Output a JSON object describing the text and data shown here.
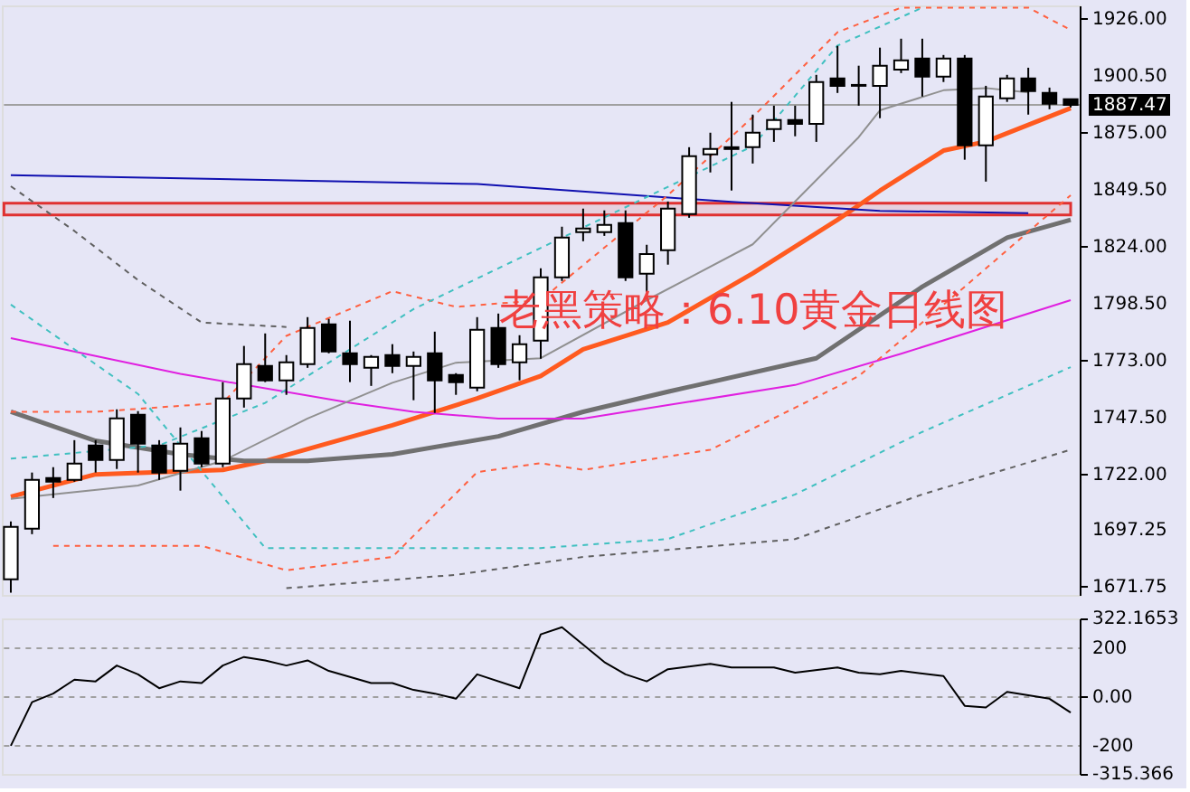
{
  "chart_data": [
    {
      "type": "candlestick",
      "categories": [
        null,
        null,
        null,
        null,
        null,
        null,
        null,
        null,
        null,
        null,
        null,
        null,
        null,
        null,
        null,
        null,
        null,
        null,
        null,
        null,
        null,
        null,
        null,
        null,
        null,
        null,
        null,
        null,
        null,
        null,
        null,
        null,
        null,
        null,
        null,
        null,
        null,
        null,
        null,
        null,
        null,
        null,
        null,
        null,
        null,
        null,
        null,
        null,
        null,
        null,
        null
      ],
      "ohlc": [
        [
          1675.0,
          1700.9,
          1669.0,
          1698.5
        ],
        [
          1697.7,
          1722.8,
          1695.2,
          1719.5
        ],
        [
          1720.3,
          1725.2,
          1711.4,
          1718.7
        ],
        [
          1719.5,
          1737.3,
          1718.7,
          1726.8
        ],
        [
          1734.9,
          1737.3,
          1722.8,
          1728.4
        ],
        [
          1728.4,
          1751.1,
          1724.4,
          1747.1
        ],
        [
          1748.7,
          1750.3,
          1722.8,
          1735.7
        ],
        [
          1734.9,
          1737.3,
          1719.5,
          1722.8
        ],
        [
          1723.6,
          1743.0,
          1714.7,
          1735.7
        ],
        [
          1738.2,
          1741.4,
          1725.2,
          1726.8
        ],
        [
          1726.8,
          1763.3,
          1725.2,
          1756.0
        ],
        [
          1756.0,
          1779.5,
          1751.9,
          1771.4
        ],
        [
          1770.5,
          1785.1,
          1763.3,
          1764.1
        ],
        [
          1764.1,
          1775.4,
          1757.6,
          1772.2
        ],
        [
          1771.4,
          1792.4,
          1769.7,
          1787.5
        ],
        [
          1789.2,
          1791.6,
          1776.2,
          1777.0
        ],
        [
          1776.2,
          1790.8,
          1763.3,
          1771.4
        ],
        [
          1769.7,
          1775.4,
          1761.6,
          1774.6
        ],
        [
          1775.4,
          1780.3,
          1767.3,
          1770.5
        ],
        [
          1770.5,
          1777.0,
          1755.2,
          1774.6
        ],
        [
          1776.2,
          1785.9,
          1749.5,
          1764.1
        ],
        [
          1766.5,
          1767.3,
          1757.6,
          1763.3
        ],
        [
          1760.8,
          1792.4,
          1759.2,
          1786.7
        ],
        [
          1787.5,
          1794.0,
          1769.7,
          1771.4
        ],
        [
          1772.2,
          1784.3,
          1764.1,
          1780.3
        ],
        [
          1781.9,
          1814.3,
          1773.8,
          1810.2
        ],
        [
          1810.2,
          1832.9,
          1808.6,
          1828.0
        ],
        [
          1830.5,
          1841.0,
          1826.4,
          1832.1
        ],
        [
          1830.5,
          1840.2,
          1828.8,
          1833.7
        ],
        [
          1834.5,
          1840.2,
          1808.6,
          1810.2
        ],
        [
          1811.8,
          1824.8,
          1803.7,
          1820.7
        ],
        [
          1822.4,
          1844.2,
          1815.9,
          1841.0
        ],
        [
          1838.6,
          1868.5,
          1836.9,
          1864.5
        ],
        [
          1865.3,
          1875.0,
          1857.2,
          1867.7
        ],
        [
          1867.7,
          1888.8,
          1849.1,
          1868.5
        ],
        [
          1868.5,
          1883.1,
          1861.2,
          1875.0
        ],
        [
          1876.6,
          1887.1,
          1870.9,
          1880.7
        ],
        [
          1880.7,
          1887.1,
          1873.4,
          1879.0
        ],
        [
          1879.0,
          1900.9,
          1870.9,
          1897.7
        ],
        [
          1899.3,
          1913.9,
          1892.8,
          1896.0
        ],
        [
          1896.0,
          1905.0,
          1887.1,
          1896.4
        ],
        [
          1896.0,
          1913.1,
          1881.5,
          1905.0
        ],
        [
          1903.3,
          1917.1,
          1901.7,
          1907.4
        ],
        [
          1908.2,
          1917.1,
          1891.2,
          1900.1
        ],
        [
          1900.1,
          1909.8,
          1897.7,
          1908.2
        ],
        [
          1908.2,
          1909.8,
          1862.9,
          1869.3
        ],
        [
          1869.3,
          1896.0,
          1853.1,
          1891.2
        ],
        [
          1890.4,
          1900.9,
          1888.8,
          1899.3
        ],
        [
          1899.3,
          1904.1,
          1883.1,
          1893.6
        ],
        [
          1892.8,
          1895.2,
          1885.5,
          1888.0
        ],
        [
          1890.0,
          1890.0,
          1886.3,
          1887.47
        ]
      ],
      "series": [
        {
          "type": "line",
          "color": "#ff5a1f",
          "values": [
            1712,
            null,
            null,
            null,
            1722,
            null,
            null,
            null,
            null,
            null,
            1724,
            null,
            1728,
            null,
            null,
            null,
            null,
            null,
            1744,
            null,
            null,
            null,
            1756,
            null,
            null,
            1766,
            null,
            1778,
            null,
            null,
            null,
            1790,
            null,
            null,
            null,
            1812,
            null,
            null,
            null,
            1836,
            null,
            1849,
            null,
            null,
            1867,
            null,
            1871,
            null,
            null,
            null,
            1886
          ]
        },
        {
          "type": "line",
          "color": "#707070",
          "values": [
            1750,
            null,
            null,
            null,
            1737,
            null,
            null,
            null,
            1731,
            null,
            null,
            1728,
            null,
            null,
            1728,
            null,
            null,
            null,
            1731,
            null,
            null,
            null,
            null,
            1739,
            null,
            null,
            null,
            1750,
            null,
            null,
            null,
            1759,
            null,
            null,
            null,
            null,
            null,
            null,
            1774,
            null,
            null,
            null,
            null,
            1806,
            null,
            null,
            null,
            1828,
            null,
            null,
            1836
          ]
        },
        {
          "type": "line",
          "color": "#e020e0",
          "values": [
            1783,
            null,
            null,
            null,
            1775,
            null,
            null,
            null,
            1767,
            null,
            null,
            null,
            null,
            null,
            null,
            null,
            1754,
            null,
            null,
            1750,
            null,
            null,
            null,
            1747,
            null,
            null,
            null,
            1747,
            null,
            null,
            null,
            1753,
            null,
            null,
            null,
            null,
            null,
            1762,
            null,
            null,
            null,
            null,
            1776,
            null,
            null,
            null,
            null,
            null,
            null,
            null,
            1800
          ]
        },
        {
          "type": "line",
          "color": "#1010b0",
          "values": [
            1856,
            null,
            null,
            null,
            null,
            null,
            null,
            null,
            null,
            null,
            null,
            null,
            null,
            null,
            null,
            null,
            null,
            null,
            null,
            null,
            null,
            null,
            1852,
            null,
            null,
            null,
            null,
            null,
            null,
            null,
            null,
            null,
            null,
            null,
            1844,
            null,
            null,
            null,
            null,
            null,
            null,
            1840,
            null,
            null,
            null,
            null,
            null,
            null,
            1839,
            null,
            null
          ]
        },
        {
          "type": "line",
          "color": "#909090",
          "values": [
            1711,
            null,
            1713,
            null,
            null,
            null,
            1717,
            null,
            null,
            null,
            1728,
            null,
            null,
            null,
            1747,
            null,
            null,
            null,
            1763,
            null,
            null,
            1772,
            null,
            null,
            null,
            1774,
            null,
            null,
            null,
            null,
            1800,
            null,
            null,
            null,
            null,
            1825,
            null,
            null,
            null,
            null,
            1873,
            1885,
            null,
            null,
            1894,
            null,
            1895,
            null,
            1893,
            null,
            null
          ]
        },
        {
          "type": "line",
          "color": "#ff6040",
          "line_style": "dashed",
          "values": [
            1750,
            null,
            null,
            null,
            1750,
            null,
            null,
            null,
            null,
            null,
            1754,
            null,
            null,
            1784,
            null,
            null,
            null,
            null,
            1804,
            null,
            null,
            1797,
            null,
            null,
            null,
            1800,
            null,
            null,
            null,
            null,
            null,
            1847,
            null,
            null,
            null,
            1882,
            null,
            null,
            null,
            1920,
            null,
            null,
            1931,
            null,
            null,
            null,
            null,
            null,
            1931,
            null,
            1921
          ]
        },
        {
          "type": "line",
          "color": "#ff6040",
          "line_style": "dashed",
          "values": [
            null,
            null,
            1690,
            null,
            null,
            null,
            null,
            null,
            null,
            1690,
            null,
            null,
            null,
            1679,
            null,
            null,
            null,
            null,
            1685,
            null,
            null,
            null,
            1723,
            null,
            null,
            1727,
            null,
            1724,
            null,
            null,
            null,
            null,
            null,
            1733,
            null,
            null,
            null,
            null,
            null,
            null,
            1766,
            null,
            null,
            null,
            null,
            1806,
            null,
            null,
            null,
            null,
            1847
          ]
        },
        {
          "type": "line",
          "color": "#40c0c0",
          "line_style": "dashed",
          "values": [
            1729,
            null,
            null,
            null,
            null,
            null,
            null,
            1735,
            null,
            null,
            null,
            null,
            1754,
            null,
            null,
            null,
            null,
            null,
            null,
            1796,
            null,
            null,
            null,
            null,
            null,
            null,
            null,
            null,
            null,
            null,
            null,
            null,
            null,
            null,
            null,
            1869,
            null,
            null,
            null,
            1914,
            null,
            null,
            null,
            1931,
            null,
            null,
            null,
            null,
            null,
            null,
            null
          ]
        },
        {
          "type": "line",
          "color": "#40c0c0",
          "line_style": "dashed",
          "values": [
            1798,
            null,
            null,
            null,
            null,
            null,
            1758,
            null,
            null,
            null,
            null,
            null,
            1689,
            null,
            null,
            null,
            null,
            null,
            null,
            null,
            null,
            null,
            null,
            null,
            null,
            1689,
            null,
            null,
            null,
            null,
            null,
            1693,
            null,
            null,
            null,
            null,
            null,
            1713,
            null,
            null,
            null,
            null,
            null,
            1741,
            null,
            null,
            null,
            null,
            null,
            null,
            1770
          ]
        },
        {
          "type": "line",
          "color": "#606060",
          "line_style": "dashed",
          "values": [
            1851,
            null,
            null,
            1831,
            null,
            null,
            1809,
            null,
            null,
            1790,
            null,
            null,
            null,
            1788,
            null,
            null,
            null,
            null,
            null,
            null,
            null,
            null,
            null,
            null,
            null,
            null,
            null,
            null,
            null,
            null,
            null,
            null,
            null,
            null,
            null,
            null,
            null,
            null,
            null,
            null,
            null,
            null,
            null,
            null,
            null,
            null,
            null,
            null,
            null,
            null,
            null
          ]
        },
        {
          "type": "line",
          "color": "#606060",
          "line_style": "dashed",
          "values": [
            null,
            null,
            null,
            null,
            null,
            null,
            null,
            null,
            null,
            null,
            null,
            null,
            null,
            1671,
            null,
            null,
            null,
            null,
            null,
            null,
            null,
            1677,
            null,
            null,
            null,
            null,
            null,
            1685,
            null,
            null,
            null,
            null,
            null,
            null,
            null,
            null,
            null,
            1693,
            null,
            null,
            null,
            null,
            null,
            1713,
            null,
            null,
            null,
            null,
            null,
            null,
            1733
          ]
        }
      ],
      "ylim": [
        1668,
        1932
      ],
      "yticks": [
        {
          "value": 1926,
          "label": "1926.00"
        },
        {
          "value": 1900.5,
          "label": "1900.50"
        },
        {
          "value": 1875,
          "label": "1875.00"
        },
        {
          "value": 1849.5,
          "label": "1849.50"
        },
        {
          "value": 1824,
          "label": "1824.00"
        },
        {
          "value": 1798.5,
          "label": "1798.50"
        },
        {
          "value": 1773,
          "label": "1773.00"
        },
        {
          "value": 1747.5,
          "label": "1747.50"
        },
        {
          "value": 1722,
          "label": "1722.00"
        },
        {
          "value": 1697.25,
          "label": "1697.25"
        },
        {
          "value": 1671.75,
          "label": "1671.75"
        }
      ],
      "ref_lines": [
        {
          "axis": "y",
          "value": 1887.47,
          "label": "1887.47",
          "color": "#a0a0a0"
        }
      ],
      "bands": [
        {
          "axis": "y",
          "from": 1838.2,
          "to": 1843.4,
          "color": "#e03030"
        }
      ],
      "annotations": [
        "老黑策略：6.10黄金日线图"
      ],
      "tick_labels": "y",
      "grid": false,
      "legend": false,
      "marker": "none"
    },
    {
      "type": "line",
      "categories": [
        null,
        null,
        null,
        null,
        null,
        null,
        null,
        null,
        null,
        null,
        null,
        null,
        null,
        null,
        null,
        null,
        null,
        null,
        null,
        null,
        null,
        null,
        null,
        null,
        null,
        null,
        null,
        null,
        null,
        null,
        null,
        null,
        null,
        null,
        null,
        null,
        null,
        null,
        null,
        null,
        null,
        null,
        null,
        null,
        null,
        null,
        null,
        null,
        null,
        null,
        null
      ],
      "series": [
        {
          "color": "#000000",
          "values": [
            -200,
            -21,
            14,
            71,
            64,
            129,
            93,
            36,
            64,
            57,
            129,
            164,
            150,
            129,
            150,
            107,
            null,
            57,
            57,
            29,
            14,
            -7,
            93,
            null,
            36,
            257,
            286,
            null,
            143,
            93,
            64,
            114,
            null,
            136,
            121,
            null,
            121,
            100,
            null,
            121,
            100,
            93,
            107,
            null,
            86,
            -36,
            -43,
            21,
            7,
            -7,
            -64
          ]
        }
      ],
      "ylim": [
        -315.366,
        322.1653
      ],
      "yticks": [
        {
          "value": 322.1653,
          "label": "322.1653"
        },
        200,
        {
          "value": 0,
          "label": "0.00"
        },
        -200,
        {
          "value": -315.366,
          "label": "-315.366"
        }
      ],
      "ref_lines": [
        {
          "axis": "y",
          "value": 200,
          "color": "#a0a0a0",
          "line_style": "dashed"
        },
        {
          "axis": "y",
          "value": 0,
          "color": "#a0a0a0",
          "line_style": "dashed"
        },
        {
          "axis": "y",
          "value": -200,
          "color": "#a0a0a0",
          "line_style": "dashed"
        }
      ],
      "tick_labels": "y",
      "grid": false,
      "legend": false,
      "marker": "none"
    }
  ]
}
